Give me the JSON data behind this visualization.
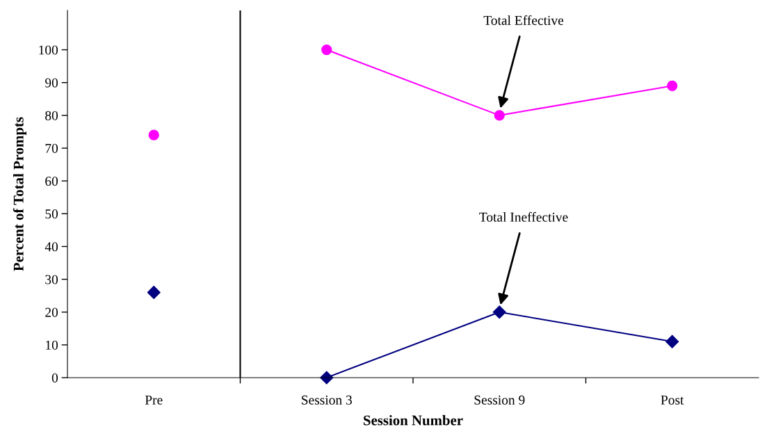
{
  "chart_data": {
    "type": "line",
    "xlabel": "Session Number",
    "ylabel": "Percent of Total Prompts",
    "categories": [
      "Pre",
      "Session 3",
      "Session 9",
      "Post"
    ],
    "ylim": [
      0,
      112
    ],
    "yticks": [
      0,
      10,
      20,
      30,
      40,
      50,
      60,
      70,
      80,
      90,
      100
    ],
    "grid": false,
    "legend": false,
    "series": [
      {
        "type": "scatter",
        "color": "#ff00ff",
        "marker": "circle",
        "values": [
          74,
          null,
          null,
          null
        ]
      },
      {
        "color": "#ff00ff",
        "marker": "circle",
        "values": [
          null,
          100,
          80,
          89
        ]
      },
      {
        "type": "scatter",
        "color": "#000080",
        "marker": "diamond",
        "values": [
          26,
          null,
          null,
          null
        ]
      },
      {
        "color": "#000080",
        "marker": "diamond",
        "values": [
          null,
          0,
          20,
          11
        ]
      }
    ],
    "annotations": [
      "Total Effective",
      "Total Ineffective"
    ]
  }
}
